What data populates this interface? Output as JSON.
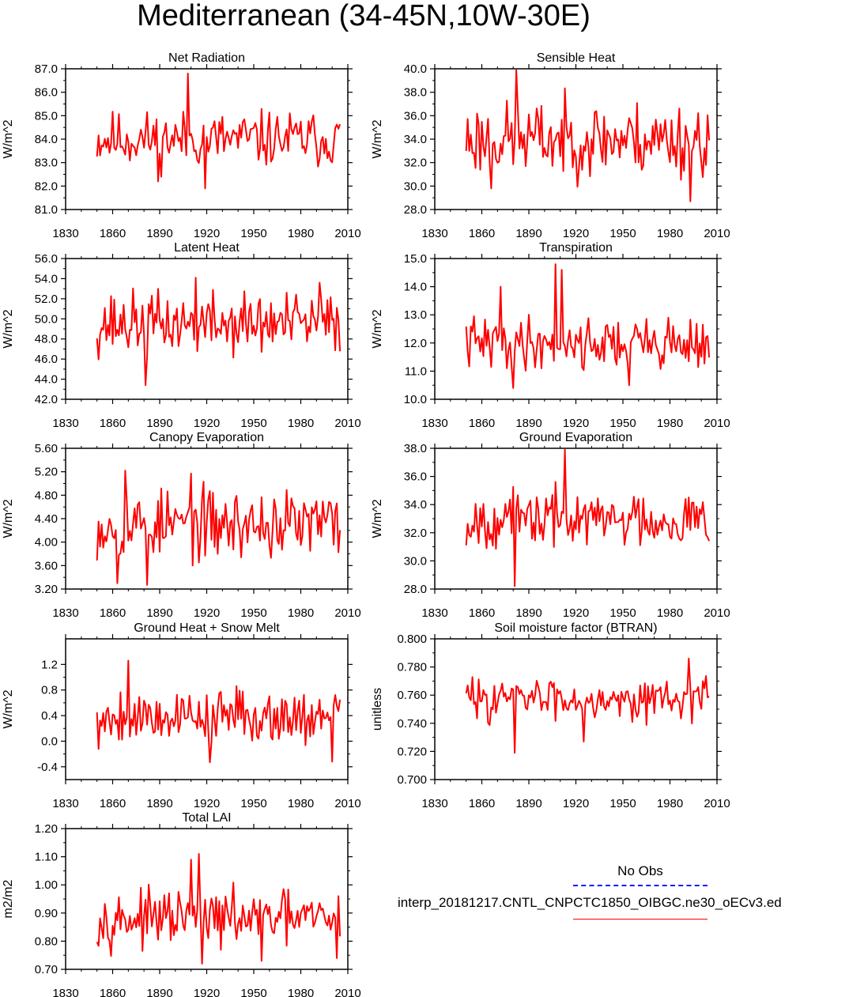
{
  "title": "Mediterranean (34-45N,10W-30E)",
  "legend": {
    "obs_label": "No Obs",
    "model_label": "interp_20181217.CNTL_CNPCTC1850_OIBGC.ne30_oECv3.ed",
    "obs_color": "#1a1aff",
    "model_color": "#ff0000"
  },
  "chart_data": [
    {
      "type": "line",
      "title": "Net Radiation",
      "ylabel": "W/m^2",
      "xlim": [
        1830,
        2010
      ],
      "ylim": [
        81,
        87
      ],
      "xticks": [
        "1830",
        "1860",
        "1890",
        "1920",
        "1950",
        "1980",
        "2010"
      ],
      "yticks": [
        "81.0",
        "82.0",
        "83.0",
        "84.0",
        "85.0",
        "86.0",
        "87.0"
      ],
      "series": [
        {
          "color": "#ff0000",
          "x_start": 1850,
          "x_end": 2005,
          "base": 84.0,
          "amp": 0.9,
          "seed": 11,
          "events": [
            {
              "x": 1908,
              "y": 86.8
            },
            {
              "x": 1919,
              "y": 81.9
            },
            {
              "x": 1889,
              "y": 82.2
            }
          ]
        }
      ]
    },
    {
      "type": "line",
      "title": "Sensible Heat",
      "ylabel": "W/m^2",
      "xlim": [
        1830,
        2010
      ],
      "ylim": [
        28,
        40
      ],
      "xticks": [
        "1830",
        "1860",
        "1890",
        "1920",
        "1950",
        "1980",
        "2010"
      ],
      "yticks": [
        "28.0",
        "30.0",
        "32.0",
        "34.0",
        "36.0",
        "38.0",
        "40.0"
      ],
      "series": [
        {
          "color": "#ff0000",
          "x_start": 1850,
          "x_end": 2005,
          "base": 34.0,
          "amp": 2.4,
          "seed": 23,
          "events": [
            {
              "x": 1882,
              "y": 39.9
            },
            {
              "x": 1993,
              "y": 28.7
            },
            {
              "x": 1866,
              "y": 29.8
            }
          ]
        }
      ]
    },
    {
      "type": "line",
      "title": "Latent Heat",
      "ylabel": "W/m^2",
      "xlim": [
        1830,
        2010
      ],
      "ylim": [
        42,
        56
      ],
      "xticks": [
        "1830",
        "1860",
        "1890",
        "1920",
        "1950",
        "1980",
        "2010"
      ],
      "yticks": [
        "42.0",
        "44.0",
        "46.0",
        "48.0",
        "50.0",
        "52.0",
        "54.0",
        "56.0"
      ],
      "series": [
        {
          "color": "#ff0000",
          "x_start": 1850,
          "x_end": 2005,
          "base": 49.5,
          "amp": 2.4,
          "seed": 37,
          "events": [
            {
              "x": 1881,
              "y": 43.4
            },
            {
              "x": 1913,
              "y": 54.1
            },
            {
              "x": 1992,
              "y": 53.6
            }
          ]
        }
      ]
    },
    {
      "type": "line",
      "title": "Transpiration",
      "ylabel": "W/m^2",
      "xlim": [
        1830,
        2010
      ],
      "ylim": [
        10,
        15
      ],
      "xticks": [
        "1830",
        "1860",
        "1890",
        "1920",
        "1950",
        "1980",
        "2010"
      ],
      "yticks": [
        "10.0",
        "11.0",
        "12.0",
        "13.0",
        "14.0",
        "15.0"
      ],
      "series": [
        {
          "color": "#ff0000",
          "x_start": 1850,
          "x_end": 2005,
          "base": 12.0,
          "amp": 0.7,
          "seed": 41,
          "events": [
            {
              "x": 1907,
              "y": 14.8
            },
            {
              "x": 1911,
              "y": 14.6
            },
            {
              "x": 1872,
              "y": 14.0
            },
            {
              "x": 1880,
              "y": 10.4
            },
            {
              "x": 1954,
              "y": 10.5
            }
          ]
        }
      ]
    },
    {
      "type": "line",
      "title": "Canopy Evaporation",
      "ylabel": "W/m^2",
      "xlim": [
        1830,
        2010
      ],
      "ylim": [
        3.2,
        5.6
      ],
      "xticks": [
        "1830",
        "1860",
        "1890",
        "1920",
        "1950",
        "1980",
        "2010"
      ],
      "yticks": [
        "3.20",
        "3.60",
        "4.00",
        "4.40",
        "4.80",
        "5.20",
        "5.60"
      ],
      "series": [
        {
          "color": "#ff0000",
          "x_start": 1850,
          "x_end": 2005,
          "base": 4.3,
          "amp": 0.45,
          "seed": 53,
          "events": [
            {
              "x": 1868,
              "y": 5.22
            },
            {
              "x": 1882,
              "y": 3.27
            },
            {
              "x": 1863,
              "y": 3.3
            },
            {
              "x": 1910,
              "y": 5.17
            }
          ]
        }
      ]
    },
    {
      "type": "line",
      "title": "Ground Evaporation",
      "ylabel": "W/m^2",
      "xlim": [
        1830,
        2010
      ],
      "ylim": [
        28,
        38
      ],
      "xticks": [
        "1830",
        "1860",
        "1890",
        "1920",
        "1950",
        "1980",
        "2010"
      ],
      "yticks": [
        "28.0",
        "30.0",
        "32.0",
        "34.0",
        "36.0",
        "38.0"
      ],
      "series": [
        {
          "color": "#ff0000",
          "x_start": 1850,
          "x_end": 2005,
          "base": 33.0,
          "amp": 1.5,
          "seed": 67,
          "events": [
            {
              "x": 1913,
              "y": 37.9
            },
            {
              "x": 1881,
              "y": 28.2
            },
            {
              "x": 1850,
              "y": 31.1
            }
          ]
        }
      ]
    },
    {
      "type": "line",
      "title": "Ground Heat + Snow Melt",
      "ylabel": "W/m^2",
      "xlim": [
        1830,
        2010
      ],
      "ylim": [
        -0.6,
        1.6
      ],
      "xticks": [
        "1830",
        "1860",
        "1890",
        "1920",
        "1950",
        "1980",
        "2010"
      ],
      "yticks": [
        "-0.4",
        "0.0",
        "0.4",
        "0.8",
        "1.2"
      ],
      "series": [
        {
          "color": "#ff0000",
          "x_start": 1850,
          "x_end": 2005,
          "base": 0.4,
          "amp": 0.32,
          "seed": 79,
          "events": [
            {
              "x": 1870,
              "y": 1.26
            },
            {
              "x": 1922,
              "y": -0.33
            },
            {
              "x": 2000,
              "y": -0.32
            },
            {
              "x": 1851,
              "y": -0.12
            }
          ]
        }
      ]
    },
    {
      "type": "line",
      "title": "Soil moisture factor (BTRAN)",
      "ylabel": "unitless",
      "xlim": [
        1830,
        2010
      ],
      "ylim": [
        0.7,
        0.8
      ],
      "xticks": [
        "1830",
        "1860",
        "1890",
        "1920",
        "1950",
        "1980",
        "2010"
      ],
      "yticks": [
        "0.700",
        "0.720",
        "0.740",
        "0.760",
        "0.780",
        "0.800"
      ],
      "series": [
        {
          "color": "#ff0000",
          "x_start": 1850,
          "x_end": 2005,
          "base": 0.758,
          "amp": 0.011,
          "seed": 83,
          "events": [
            {
              "x": 1881,
              "y": 0.719
            },
            {
              "x": 1992,
              "y": 0.786
            },
            {
              "x": 1925,
              "y": 0.727
            }
          ]
        }
      ]
    },
    {
      "type": "line",
      "title": "Total LAI",
      "ylabel": "m2/m2",
      "xlim": [
        1830,
        2010
      ],
      "ylim": [
        0.7,
        1.2
      ],
      "xticks": [
        "1830",
        "1860",
        "1890",
        "1920",
        "1950",
        "1980",
        "2010"
      ],
      "yticks": [
        "0.70",
        "0.80",
        "0.90",
        "1.00",
        "1.10",
        "1.20"
      ],
      "series": [
        {
          "color": "#ff0000",
          "x_start": 1850,
          "x_end": 2005,
          "base": 0.88,
          "amp": 0.07,
          "seed": 97,
          "events": [
            {
              "x": 1910,
              "y": 1.09
            },
            {
              "x": 1915,
              "y": 1.11
            },
            {
              "x": 1917,
              "y": 0.72
            },
            {
              "x": 1955,
              "y": 0.73
            },
            {
              "x": 2003,
              "y": 0.74
            }
          ]
        }
      ]
    }
  ]
}
